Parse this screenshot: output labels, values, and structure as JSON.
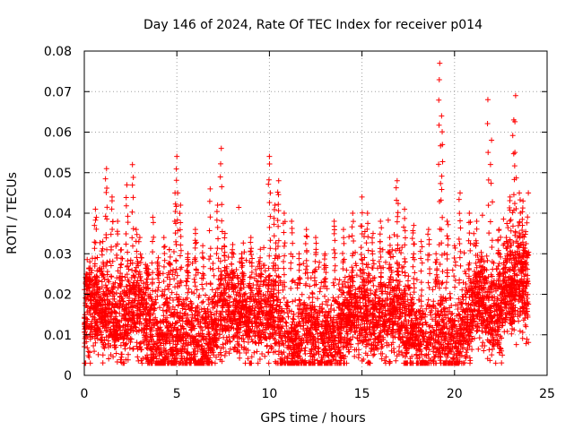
{
  "chart_data": {
    "type": "scatter",
    "title": "Day 146 of 2024, Rate Of TEC Index for receiver p014",
    "xlabel": "GPS time / hours",
    "ylabel": "ROTI / TECUs",
    "xlim": [
      0,
      25
    ],
    "ylim": [
      0,
      0.08
    ],
    "xticks": [
      0,
      5,
      10,
      15,
      20,
      25
    ],
    "xtick_labels": [
      "0",
      "5",
      "10",
      "15",
      "20",
      "25"
    ],
    "yticks": [
      0,
      0.01,
      0.02,
      0.03,
      0.04,
      0.05,
      0.06,
      0.07,
      0.08
    ],
    "ytick_labels": [
      "0",
      "0.01",
      "0.02",
      "0.03",
      "0.04",
      "0.05",
      "0.06",
      "0.07",
      "0.08"
    ],
    "grid": true,
    "marker": "+",
    "marker_color": "#ff0000",
    "series": [
      {
        "name": "ROTI",
        "note": "dense cloud of points spanning 0-24 h; baseline ~0.005-0.03, representative notable peaks listed",
        "x": [
          0.1,
          0.3,
          0.6,
          1.0,
          1.2,
          1.5,
          1.8,
          2.0,
          2.3,
          2.6,
          2.8,
          3.0,
          3.4,
          3.7,
          4.0,
          4.3,
          4.6,
          4.9,
          5.0,
          5.2,
          5.6,
          6.0,
          6.4,
          6.8,
          7.2,
          7.4,
          7.6,
          8.0,
          8.5,
          9.0,
          9.5,
          10.0,
          10.3,
          10.5,
          10.8,
          11.2,
          11.6,
          12.0,
          12.5,
          13.0,
          13.5,
          14.0,
          14.5,
          15.0,
          15.3,
          15.6,
          16.0,
          16.5,
          16.9,
          17.3,
          17.8,
          18.2,
          18.6,
          19.0,
          19.2,
          19.3,
          19.6,
          20.0,
          20.3,
          20.8,
          21.2,
          21.6,
          21.8,
          22.0,
          22.4,
          22.8,
          23.0,
          23.2,
          23.3,
          23.5,
          23.7,
          23.9
        ],
        "y": [
          0.025,
          0.028,
          0.041,
          0.033,
          0.051,
          0.044,
          0.038,
          0.031,
          0.047,
          0.052,
          0.036,
          0.034,
          0.027,
          0.039,
          0.029,
          0.034,
          0.031,
          0.045,
          0.054,
          0.042,
          0.03,
          0.036,
          0.032,
          0.046,
          0.042,
          0.056,
          0.035,
          0.031,
          0.03,
          0.034,
          0.029,
          0.054,
          0.042,
          0.048,
          0.04,
          0.038,
          0.03,
          0.036,
          0.034,
          0.03,
          0.038,
          0.036,
          0.04,
          0.044,
          0.04,
          0.035,
          0.038,
          0.034,
          0.048,
          0.041,
          0.037,
          0.033,
          0.036,
          0.03,
          0.077,
          0.064,
          0.038,
          0.032,
          0.045,
          0.04,
          0.038,
          0.028,
          0.068,
          0.058,
          0.036,
          0.034,
          0.044,
          0.063,
          0.069,
          0.045,
          0.043,
          0.03
        ]
      }
    ]
  }
}
